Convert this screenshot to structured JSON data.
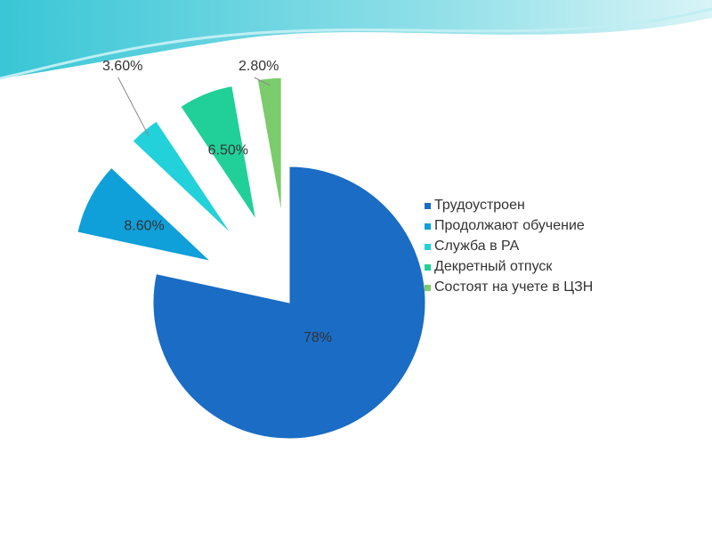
{
  "chart_data": {
    "type": "pie",
    "categories": [
      "Трудоустроен",
      "Продолжают обучение",
      "Служба в РА",
      "Декретный отпуск",
      "Состоят на учете в ЦЗН"
    ],
    "values": [
      78,
      8.6,
      3.6,
      6.5,
      2.8
    ],
    "value_labels": [
      "78%",
      "8.60%",
      "3.60%",
      "6.50%",
      "2.80%"
    ],
    "colors": [
      "#1a6cc4",
      "#0f9fd9",
      "#22d1d9",
      "#20d098",
      "#7ccb6c"
    ],
    "legend": "right"
  }
}
